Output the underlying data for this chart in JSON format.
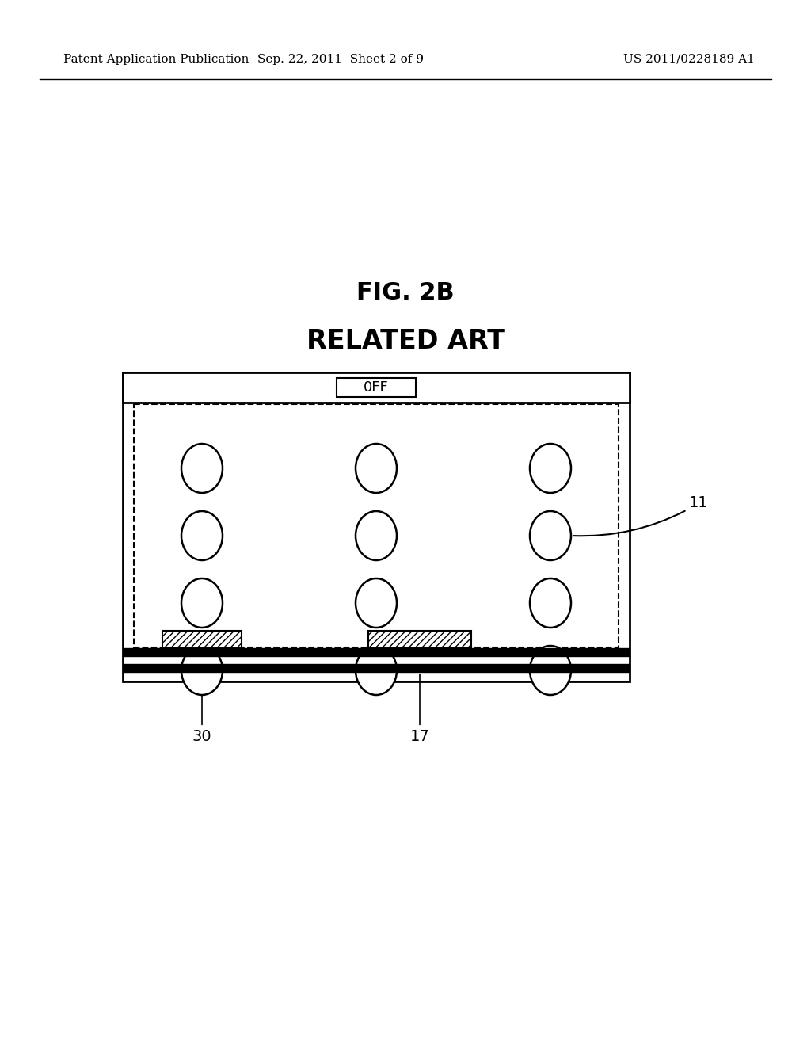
{
  "background_color": "#ffffff",
  "header_left": "Patent Application Publication",
  "header_center": "Sep. 22, 2011  Sheet 2 of 9",
  "header_right": "US 2011/0228189 A1",
  "fig_title": "FIG. 2B",
  "subtitle": "RELATED ART",
  "off_label": "0FF",
  "label_11": "11",
  "label_30": "30",
  "label_17": "17"
}
